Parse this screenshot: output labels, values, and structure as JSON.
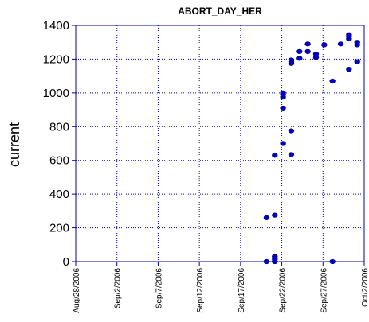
{
  "chart_data": {
    "type": "scatter",
    "title": "ABORT_DAY_HER",
    "xlabel": "",
    "ylabel": "current",
    "x_axis": {
      "min": "2006-08-28",
      "max": "2006-10-02",
      "ticks": [
        "Aug/28/2006",
        "Sep/2/2006",
        "Sep/7/2006",
        "Sep/12/2006",
        "Sep/17/2006",
        "Sep/22/2006",
        "Sep/27/2006",
        "Oct/2/2006"
      ]
    },
    "y_axis": {
      "min": 0,
      "max": 1400,
      "ticks": [
        0,
        200,
        400,
        600,
        800,
        1000,
        1200,
        1400
      ]
    },
    "grid": true,
    "marker_color": "#0000cc",
    "axis_color": "#0000aa",
    "points": [
      {
        "x": "2006-09-20",
        "y": 0
      },
      {
        "x": "2006-09-20",
        "y": 260
      },
      {
        "x": "2006-09-21",
        "y": 0
      },
      {
        "x": "2006-09-21",
        "y": 15
      },
      {
        "x": "2006-09-21",
        "y": 30
      },
      {
        "x": "2006-09-21",
        "y": 275
      },
      {
        "x": "2006-09-21",
        "y": 630
      },
      {
        "x": "2006-09-22",
        "y": 700
      },
      {
        "x": "2006-09-22",
        "y": 910
      },
      {
        "x": "2006-09-22",
        "y": 975
      },
      {
        "x": "2006-09-22",
        "y": 990
      },
      {
        "x": "2006-09-22",
        "y": 1000
      },
      {
        "x": "2006-09-23",
        "y": 635
      },
      {
        "x": "2006-09-23",
        "y": 775
      },
      {
        "x": "2006-09-23",
        "y": 1175
      },
      {
        "x": "2006-09-23",
        "y": 1185
      },
      {
        "x": "2006-09-23",
        "y": 1195
      },
      {
        "x": "2006-09-24",
        "y": 1205
      },
      {
        "x": "2006-09-24",
        "y": 1245
      },
      {
        "x": "2006-09-25",
        "y": 1245
      },
      {
        "x": "2006-09-25",
        "y": 1290
      },
      {
        "x": "2006-09-26",
        "y": 1210
      },
      {
        "x": "2006-09-26",
        "y": 1230
      },
      {
        "x": "2006-09-27",
        "y": 1285
      },
      {
        "x": "2006-09-28",
        "y": 0
      },
      {
        "x": "2006-09-28",
        "y": 1070
      },
      {
        "x": "2006-09-29",
        "y": 1290
      },
      {
        "x": "2006-09-30",
        "y": 1140
      },
      {
        "x": "2006-09-30",
        "y": 1320
      },
      {
        "x": "2006-09-30",
        "y": 1335
      },
      {
        "x": "2006-09-30",
        "y": 1345
      },
      {
        "x": "2006-10-01",
        "y": 1185
      },
      {
        "x": "2006-10-01",
        "y": 1285
      },
      {
        "x": "2006-10-01",
        "y": 1300
      }
    ]
  }
}
